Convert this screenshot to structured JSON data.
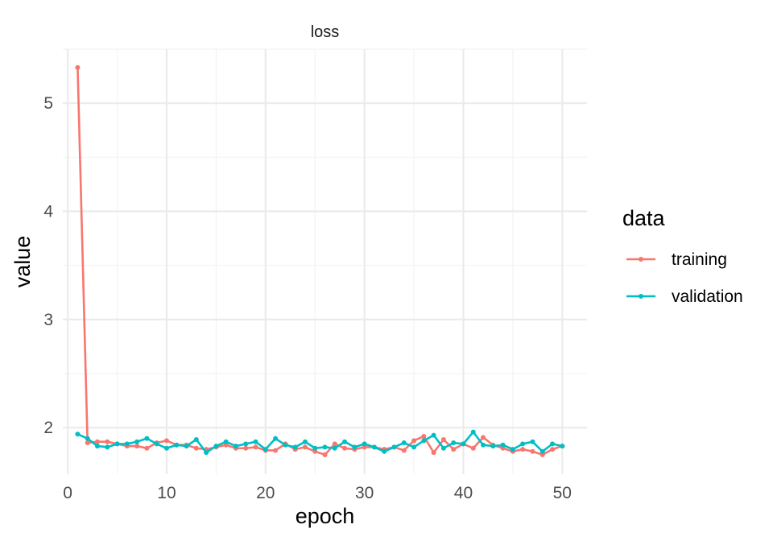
{
  "chart_data": {
    "type": "line",
    "facet_label": "loss",
    "xlabel": "epoch",
    "ylabel": "value",
    "x_ticks": [
      0,
      10,
      20,
      30,
      40,
      50
    ],
    "y_ticks": [
      2,
      3,
      4,
      5
    ],
    "xlim": [
      -0.5,
      52.5
    ],
    "ylim": [
      1.57,
      5.5
    ],
    "grid": true,
    "legend": {
      "title": "data",
      "position": "right"
    },
    "x": [
      1,
      2,
      3,
      4,
      5,
      6,
      7,
      8,
      9,
      10,
      11,
      12,
      13,
      14,
      15,
      16,
      17,
      18,
      19,
      20,
      21,
      22,
      23,
      24,
      25,
      26,
      27,
      28,
      29,
      30,
      31,
      32,
      33,
      34,
      35,
      36,
      37,
      38,
      39,
      40,
      41,
      42,
      43,
      44,
      45,
      46,
      47,
      48,
      49,
      50
    ],
    "series": [
      {
        "name": "training",
        "color": "#F8766D",
        "values": [
          5.33,
          1.86,
          1.87,
          1.87,
          1.85,
          1.83,
          1.83,
          1.81,
          1.86,
          1.88,
          1.84,
          1.84,
          1.81,
          1.8,
          1.82,
          1.84,
          1.81,
          1.81,
          1.82,
          1.79,
          1.79,
          1.85,
          1.8,
          1.82,
          1.78,
          1.75,
          1.85,
          1.81,
          1.8,
          1.82,
          1.82,
          1.8,
          1.82,
          1.79,
          1.88,
          1.92,
          1.77,
          1.89,
          1.8,
          1.85,
          1.81,
          1.91,
          1.84,
          1.81,
          1.78,
          1.8,
          1.78,
          1.75,
          1.8,
          1.83
        ]
      },
      {
        "name": "validation",
        "color": "#00BFC4",
        "values": [
          1.94,
          1.9,
          1.83,
          1.82,
          1.85,
          1.85,
          1.87,
          1.9,
          1.85,
          1.81,
          1.84,
          1.83,
          1.89,
          1.77,
          1.83,
          1.87,
          1.83,
          1.85,
          1.87,
          1.8,
          1.9,
          1.84,
          1.82,
          1.87,
          1.81,
          1.82,
          1.81,
          1.87,
          1.82,
          1.85,
          1.82,
          1.78,
          1.82,
          1.86,
          1.82,
          1.88,
          1.93,
          1.81,
          1.86,
          1.85,
          1.96,
          1.84,
          1.83,
          1.84,
          1.8,
          1.85,
          1.87,
          1.78,
          1.85,
          1.83
        ]
      }
    ]
  }
}
